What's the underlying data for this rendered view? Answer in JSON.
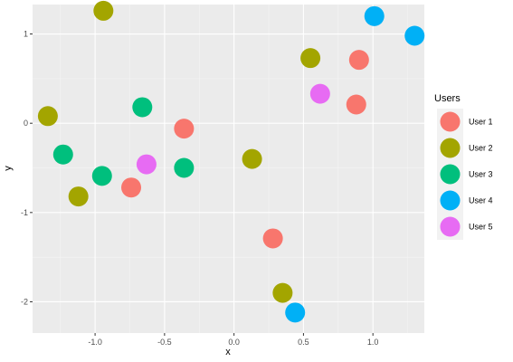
{
  "chart_data": {
    "type": "scatter",
    "xlabel": "x",
    "ylabel": "y",
    "xlim": [
      -1.45,
      1.37
    ],
    "ylim": [
      -2.35,
      1.33
    ],
    "x_ticks": [
      -1.0,
      -0.5,
      0.0,
      0.5,
      1.0
    ],
    "x_tick_labels": [
      "-1.0",
      "-0.5",
      "0.0",
      "0.5",
      "1.0"
    ],
    "y_ticks": [
      -2,
      -1,
      0,
      1
    ],
    "y_tick_labels": [
      "-2",
      "-1",
      "0",
      "1"
    ],
    "grid": true,
    "legend_title": "Users",
    "legend_position": "right",
    "series": [
      {
        "name": "User 1",
        "color": "#F8766D",
        "points": [
          [
            -0.36,
            -0.06
          ],
          [
            -0.74,
            -0.72
          ],
          [
            0.28,
            -1.29
          ],
          [
            0.9,
            0.71
          ],
          [
            0.88,
            0.21
          ]
        ]
      },
      {
        "name": "User 2",
        "color": "#A3A500",
        "points": [
          [
            -0.94,
            1.26
          ],
          [
            -1.34,
            0.08
          ],
          [
            -1.12,
            -0.82
          ],
          [
            0.13,
            -0.4
          ],
          [
            0.35,
            -1.9
          ],
          [
            0.55,
            0.73
          ]
        ]
      },
      {
        "name": "User 3",
        "color": "#00BF7D",
        "points": [
          [
            -0.66,
            0.18
          ],
          [
            -1.23,
            -0.35
          ],
          [
            -0.95,
            -0.59
          ],
          [
            -0.36,
            -0.5
          ]
        ]
      },
      {
        "name": "User 4",
        "color": "#00B0F6",
        "points": [
          [
            1.01,
            1.2
          ],
          [
            1.3,
            0.98
          ],
          [
            0.44,
            -2.12
          ]
        ]
      },
      {
        "name": "User 5",
        "color": "#E76BF3",
        "points": [
          [
            -0.63,
            -0.46
          ],
          [
            0.62,
            0.33
          ]
        ]
      }
    ]
  }
}
